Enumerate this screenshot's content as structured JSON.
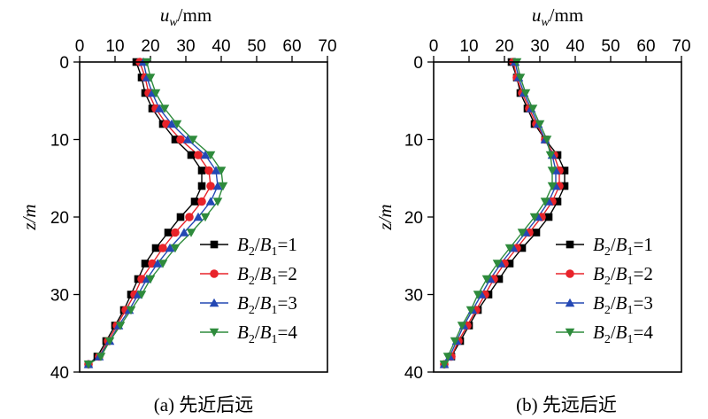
{
  "colors": {
    "s1": "#000000",
    "s2": "#e8232a",
    "s3": "#2448b4",
    "s4": "#2e8b3c"
  },
  "markers": [
    "square",
    "circle",
    "triangle-up",
    "triangle-down"
  ],
  "panels": {
    "a": {
      "xlabel_var": "u",
      "xlabel_sub": "w",
      "xlabel_unit": "/mm",
      "ylabel": "z/m",
      "caption": "(a) 先近后远",
      "legend": [
        {
          "b": "B",
          "s2": "2",
          "sep": "/",
          "b1": "B",
          "s1": "1",
          "eq": "=1"
        },
        {
          "b": "B",
          "s2": "2",
          "sep": "/",
          "b1": "B",
          "s1": "1",
          "eq": "=2"
        },
        {
          "b": "B",
          "s2": "2",
          "sep": "/",
          "b1": "B",
          "s1": "1",
          "eq": "=3"
        },
        {
          "b": "B",
          "s2": "2",
          "sep": "/",
          "b1": "B",
          "s1": "1",
          "eq": "=4"
        }
      ]
    },
    "b": {
      "xlabel_var": "u",
      "xlabel_sub": "w",
      "xlabel_unit": "/mm",
      "ylabel": "z/m",
      "caption": "(b) 先远后近",
      "legend": [
        {
          "b": "B",
          "s2": "2",
          "sep": "/",
          "b1": "B",
          "s1": "1",
          "eq": "=1"
        },
        {
          "b": "B",
          "s2": "2",
          "sep": "/",
          "b1": "B",
          "s1": "1",
          "eq": "=2"
        },
        {
          "b": "B",
          "s2": "2",
          "sep": "/",
          "b1": "B",
          "s1": "1",
          "eq": "=3"
        },
        {
          "b": "B",
          "s2": "2",
          "sep": "/",
          "b1": "B",
          "s1": "1",
          "eq": "=4"
        }
      ]
    }
  },
  "chart_data": [
    {
      "type": "line",
      "panel": "a",
      "x_axis_position": "top",
      "y_inverted": true,
      "xlim": [
        0,
        70
      ],
      "ylim": [
        0,
        40
      ],
      "xticks": [
        "0",
        "10",
        "20",
        "30",
        "40",
        "50",
        "60",
        "70"
      ],
      "yticks": [
        "0",
        "10",
        "20",
        "30",
        "40"
      ],
      "legend_position": "lower-right",
      "depths": [
        0,
        2,
        4,
        6,
        8,
        10,
        12,
        14,
        16,
        18,
        20,
        22,
        24,
        26,
        28,
        30,
        32,
        34,
        36,
        38,
        39
      ],
      "series": [
        {
          "values": [
            16.0,
            17.5,
            18.5,
            20.5,
            23.5,
            27.0,
            31.5,
            34.5,
            34.5,
            32.5,
            28.5,
            25.0,
            21.5,
            18.5,
            16.5,
            14.5,
            12.5,
            10.0,
            7.5,
            5.0,
            2.5
          ]
        },
        {
          "values": [
            17.0,
            18.5,
            19.5,
            21.5,
            24.5,
            28.5,
            33.5,
            36.5,
            37.0,
            34.5,
            31.0,
            27.0,
            23.5,
            20.5,
            17.5,
            15.5,
            13.0,
            10.5,
            8.0,
            5.5,
            2.5
          ]
        },
        {
          "values": [
            18.0,
            19.0,
            20.5,
            22.5,
            26.0,
            30.5,
            35.5,
            38.5,
            39.0,
            37.0,
            33.5,
            29.5,
            25.5,
            22.0,
            19.0,
            16.5,
            14.0,
            11.0,
            8.5,
            5.5,
            2.5
          ]
        },
        {
          "values": [
            19.0,
            20.0,
            21.5,
            24.0,
            27.5,
            32.0,
            37.0,
            40.0,
            40.5,
            39.0,
            35.5,
            31.5,
            27.0,
            23.5,
            20.0,
            17.5,
            14.5,
            11.5,
            8.5,
            6.0,
            2.5
          ]
        }
      ]
    },
    {
      "type": "line",
      "panel": "b",
      "x_axis_position": "top",
      "y_inverted": true,
      "xlim": [
        0,
        70
      ],
      "ylim": [
        0,
        40
      ],
      "xticks": [
        "0",
        "10",
        "20",
        "30",
        "40",
        "50",
        "60",
        "70"
      ],
      "yticks": [
        "0",
        "10",
        "20",
        "30",
        "40"
      ],
      "legend_position": "lower-right",
      "depths": [
        0,
        2,
        4,
        6,
        8,
        10,
        12,
        14,
        16,
        18,
        20,
        22,
        24,
        26,
        28,
        30,
        32,
        34,
        36,
        38,
        39
      ],
      "series": [
        {
          "values": [
            22.0,
            23.5,
            24.5,
            26.5,
            28.5,
            31.5,
            35.0,
            37.0,
            37.0,
            35.0,
            32.5,
            29.0,
            25.0,
            21.5,
            18.5,
            15.5,
            12.5,
            10.0,
            7.5,
            5.0,
            3.0
          ]
        },
        {
          "values": [
            22.5,
            23.5,
            25.0,
            27.0,
            29.0,
            31.5,
            34.0,
            35.5,
            35.5,
            33.5,
            30.5,
            27.0,
            23.5,
            20.0,
            17.0,
            14.5,
            12.0,
            9.5,
            7.0,
            5.0,
            3.0
          ]
        },
        {
          "values": [
            23.0,
            24.0,
            25.5,
            27.5,
            29.5,
            31.5,
            33.5,
            34.5,
            34.5,
            32.5,
            29.5,
            26.0,
            22.5,
            19.0,
            16.0,
            13.5,
            11.0,
            8.5,
            6.5,
            4.5,
            3.0
          ]
        },
        {
          "values": [
            23.5,
            24.5,
            26.0,
            28.0,
            30.0,
            32.0,
            33.0,
            33.5,
            33.5,
            31.5,
            28.5,
            25.0,
            21.5,
            18.0,
            15.0,
            12.5,
            10.5,
            8.0,
            6.0,
            4.0,
            3.0
          ]
        }
      ]
    }
  ]
}
